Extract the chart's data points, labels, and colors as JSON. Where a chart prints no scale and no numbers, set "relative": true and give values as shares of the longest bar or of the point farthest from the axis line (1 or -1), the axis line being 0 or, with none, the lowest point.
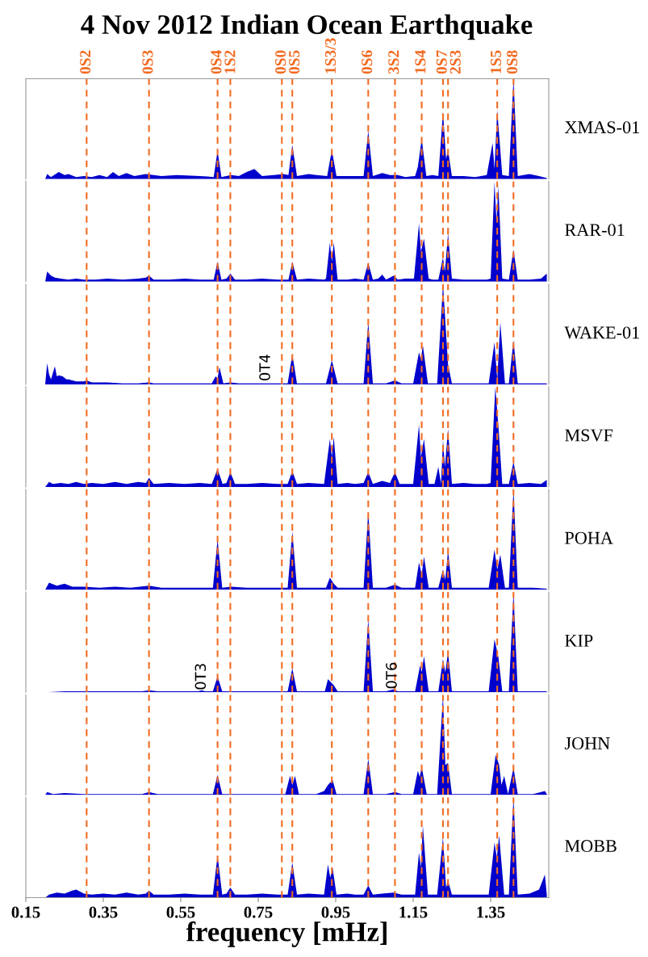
{
  "chart_data": [
    {
      "type": "area",
      "title": "4 Nov 2012 Indian Ocean Earthquake",
      "relative": true,
      "xlim": [
        0.15,
        1.5
      ],
      "tick_labels": false,
      "legend": false,
      "grid": false,
      "series": [
        {
          "name": "XMAS-01",
          "color": "#0000cc",
          "x": [
            0.2,
            0.205,
            0.215,
            0.235,
            0.25,
            0.26,
            0.28,
            0.3,
            0.32,
            0.34,
            0.36,
            0.375,
            0.39,
            0.41,
            0.43,
            0.46,
            0.5,
            0.54,
            0.6,
            0.635,
            0.645,
            0.655,
            0.68,
            0.7,
            0.72,
            0.74,
            0.76,
            0.79,
            0.815,
            0.828,
            0.838,
            0.85,
            0.88,
            0.9,
            0.928,
            0.94,
            0.952,
            0.98,
            1.0,
            1.022,
            1.034,
            1.046,
            1.07,
            1.09,
            1.11,
            1.13,
            1.155,
            1.162,
            1.172,
            1.184,
            1.2,
            1.215,
            1.227,
            1.235,
            1.24,
            1.25,
            1.28,
            1.31,
            1.34,
            1.355,
            1.36,
            1.367,
            1.38,
            1.397,
            1.409,
            1.42,
            1.45,
            1.475,
            1.495
          ],
          "values": [
            0,
            0.05,
            0.02,
            0.07,
            0.04,
            0.05,
            0.02,
            0.03,
            0.02,
            0.04,
            0.02,
            0.07,
            0.03,
            0.06,
            0.03,
            0.05,
            0.03,
            0.04,
            0.03,
            0.02,
            0.28,
            0.02,
            0.04,
            0.03,
            0.07,
            0.1,
            0.03,
            0.04,
            0.05,
            0.04,
            0.34,
            0.03,
            0.05,
            0.04,
            0.03,
            0.29,
            0.03,
            0.03,
            0.03,
            0.03,
            0.48,
            0.03,
            0.06,
            0.04,
            0.04,
            0.02,
            0.03,
            0.12,
            0.4,
            0.03,
            0.04,
            0.03,
            0.67,
            0.2,
            0.29,
            0.03,
            0.03,
            0.02,
            0.04,
            0.36,
            0.1,
            0.69,
            0.04,
            0.03,
            1.0,
            0.03,
            0.05,
            0.03,
            0.01
          ]
        }
      ],
      "ref_lines": [
        {
          "axis": "x",
          "value": 0.307,
          "label": "0S2",
          "color": "#f26b21",
          "line_style": "dashed"
        },
        {
          "axis": "x",
          "value": 0.468,
          "label": "0S3",
          "color": "#f26b21",
          "line_style": "dashed"
        },
        {
          "axis": "x",
          "value": 0.645,
          "label": "0S4",
          "color": "#f26b21",
          "line_style": "dashed"
        },
        {
          "axis": "x",
          "value": 0.678,
          "label": "1S2",
          "color": "#f26b21",
          "line_style": "dashed"
        },
        {
          "axis": "x",
          "value": 0.811,
          "label": "0S0",
          "color": "#f26b21",
          "line_style": "dashed"
        },
        {
          "axis": "x",
          "value": 0.838,
          "label": "0S5",
          "color": "#f26b21",
          "line_style": "dashed"
        },
        {
          "axis": "x",
          "value": 0.94,
          "label": "1S3/3",
          "color": "#f26b21",
          "line_style": "dashed"
        },
        {
          "axis": "x",
          "value": 1.034,
          "label": "0S6",
          "color": "#f26b21",
          "line_style": "dashed"
        },
        {
          "axis": "x",
          "value": 1.103,
          "label": "3S2",
          "color": "#f26b21",
          "line_style": "dashed"
        },
        {
          "axis": "x",
          "value": 1.172,
          "label": "1S4",
          "color": "#f26b21",
          "line_style": "dashed"
        },
        {
          "axis": "x",
          "value": 1.227,
          "label": "0S7",
          "color": "#f26b21",
          "line_style": "dashed"
        },
        {
          "axis": "x",
          "value": 1.24,
          "label": "2S3",
          "color": "#f26b21",
          "line_style": "dashed"
        },
        {
          "axis": "x",
          "value": 1.367,
          "label": "1S5",
          "color": "#f26b21",
          "line_style": "dashed"
        },
        {
          "axis": "x",
          "value": 1.409,
          "label": "0S8",
          "color": "#f26b21",
          "line_style": "dashed"
        }
      ]
    },
    {
      "type": "area",
      "relative": true,
      "xlim": [
        0.15,
        1.5
      ],
      "tick_labels": false,
      "legend": false,
      "grid": false,
      "series": [
        {
          "name": "RAR-01",
          "color": "#0000cc",
          "x": [
            0.2,
            0.205,
            0.215,
            0.225,
            0.24,
            0.26,
            0.28,
            0.3,
            0.33,
            0.36,
            0.4,
            0.44,
            0.46,
            0.468,
            0.48,
            0.52,
            0.56,
            0.6,
            0.635,
            0.645,
            0.655,
            0.668,
            0.678,
            0.69,
            0.72,
            0.76,
            0.8,
            0.828,
            0.838,
            0.85,
            0.88,
            0.92,
            0.925,
            0.935,
            0.94,
            0.945,
            0.955,
            0.98,
            1.0,
            1.022,
            1.034,
            1.046,
            1.06,
            1.07,
            1.08,
            1.1,
            1.11,
            1.13,
            1.152,
            1.165,
            1.17,
            1.178,
            1.19,
            1.2,
            1.215,
            1.227,
            1.232,
            1.24,
            1.25,
            1.28,
            1.31,
            1.34,
            1.35,
            1.36,
            1.365,
            1.37,
            1.38,
            1.397,
            1.409,
            1.42,
            1.45,
            1.48,
            1.495
          ],
          "values": [
            0,
            0.1,
            0.06,
            0.04,
            0.03,
            0.02,
            0.03,
            0.02,
            0.02,
            0.03,
            0.02,
            0.03,
            0.04,
            0.06,
            0.02,
            0.02,
            0.03,
            0.02,
            0.02,
            0.2,
            0.02,
            0.03,
            0.08,
            0.02,
            0.02,
            0.03,
            0.02,
            0.02,
            0.2,
            0.02,
            0.03,
            0.02,
            0.03,
            0.39,
            0.2,
            0.39,
            0.02,
            0.02,
            0.03,
            0.02,
            0.19,
            0.02,
            0.03,
            0.07,
            0.02,
            0.06,
            0.02,
            0.03,
            0.03,
            0.58,
            0.3,
            0.43,
            0.03,
            0.02,
            0.02,
            0.24,
            0.1,
            0.48,
            0.03,
            0.02,
            0.02,
            0.02,
            0.03,
            1.0,
            0.6,
            0.95,
            0.03,
            0.02,
            0.32,
            0.02,
            0.02,
            0.03,
            0.08
          ]
        }
      ],
      "ref_lines": [
        {
          "axis": "x",
          "value": 0.307,
          "color": "#f26b21",
          "line_style": "dashed"
        },
        {
          "axis": "x",
          "value": 0.468,
          "color": "#f26b21",
          "line_style": "dashed"
        },
        {
          "axis": "x",
          "value": 0.645,
          "color": "#f26b21",
          "line_style": "dashed"
        },
        {
          "axis": "x",
          "value": 0.678,
          "color": "#f26b21",
          "line_style": "dashed"
        },
        {
          "axis": "x",
          "value": 0.811,
          "color": "#f26b21",
          "line_style": "dashed"
        },
        {
          "axis": "x",
          "value": 0.838,
          "color": "#f26b21",
          "line_style": "dashed"
        },
        {
          "axis": "x",
          "value": 0.94,
          "color": "#f26b21",
          "line_style": "dashed"
        },
        {
          "axis": "x",
          "value": 1.034,
          "color": "#f26b21",
          "line_style": "dashed"
        },
        {
          "axis": "x",
          "value": 1.103,
          "color": "#f26b21",
          "line_style": "dashed"
        },
        {
          "axis": "x",
          "value": 1.172,
          "color": "#f26b21",
          "line_style": "dashed"
        },
        {
          "axis": "x",
          "value": 1.227,
          "color": "#f26b21",
          "line_style": "dashed"
        },
        {
          "axis": "x",
          "value": 1.24,
          "color": "#f26b21",
          "line_style": "dashed"
        },
        {
          "axis": "x",
          "value": 1.367,
          "color": "#f26b21",
          "line_style": "dashed"
        },
        {
          "axis": "x",
          "value": 1.409,
          "color": "#f26b21",
          "line_style": "dashed"
        }
      ]
    },
    {
      "type": "area",
      "relative": true,
      "xlim": [
        0.15,
        1.5
      ],
      "tick_labels": false,
      "legend": false,
      "grid": false,
      "annotations": [
        {
          "text": "0T4",
          "x": 0.77,
          "y": 0.03
        }
      ],
      "series": [
        {
          "name": "WAKE-01",
          "color": "#0000cc",
          "x": [
            0.2,
            0.205,
            0.21,
            0.215,
            0.225,
            0.23,
            0.235,
            0.245,
            0.255,
            0.26,
            0.28,
            0.3,
            0.307,
            0.32,
            0.36,
            0.4,
            0.44,
            0.468,
            0.48,
            0.52,
            0.56,
            0.6,
            0.63,
            0.64,
            0.645,
            0.65,
            0.66,
            0.678,
            0.7,
            0.75,
            0.8,
            0.826,
            0.838,
            0.85,
            0.9,
            0.925,
            0.94,
            0.955,
            1.0,
            1.022,
            1.034,
            1.046,
            1.08,
            1.103,
            1.12,
            1.15,
            1.165,
            1.17,
            1.175,
            1.188,
            1.212,
            1.227,
            1.24,
            1.25,
            1.3,
            1.345,
            1.36,
            1.367,
            1.375,
            1.387,
            1.397,
            1.409,
            1.42,
            1.46,
            1.495
          ],
          "values": [
            0,
            0.21,
            0.1,
            0.05,
            0.18,
            0.08,
            0.09,
            0.08,
            0.05,
            0.05,
            0.03,
            0.03,
            0.04,
            0.02,
            0.02,
            0.01,
            0.01,
            0.02,
            0.01,
            0.01,
            0.01,
            0.01,
            0.01,
            0.08,
            0.06,
            0.17,
            0.01,
            0.02,
            0.01,
            0.01,
            0.01,
            0.01,
            0.3,
            0.01,
            0.01,
            0.01,
            0.24,
            0.01,
            0.01,
            0.01,
            0.62,
            0.01,
            0.01,
            0.04,
            0.01,
            0.01,
            0.32,
            0.25,
            0.39,
            0.01,
            0.01,
            1.0,
            0.2,
            0.01,
            0.01,
            0.01,
            0.42,
            0.05,
            0.62,
            0.01,
            0.01,
            0.44,
            0.01,
            0.01,
            0.01
          ]
        }
      ],
      "ref_lines": [
        {
          "axis": "x",
          "value": 0.307,
          "color": "#f26b21",
          "line_style": "dashed"
        },
        {
          "axis": "x",
          "value": 0.468,
          "color": "#f26b21",
          "line_style": "dashed"
        },
        {
          "axis": "x",
          "value": 0.645,
          "color": "#f26b21",
          "line_style": "dashed"
        },
        {
          "axis": "x",
          "value": 0.678,
          "color": "#f26b21",
          "line_style": "dashed"
        },
        {
          "axis": "x",
          "value": 0.811,
          "color": "#f26b21",
          "line_style": "dashed"
        },
        {
          "axis": "x",
          "value": 0.838,
          "color": "#f26b21",
          "line_style": "dashed"
        },
        {
          "axis": "x",
          "value": 0.94,
          "color": "#f26b21",
          "line_style": "dashed"
        },
        {
          "axis": "x",
          "value": 1.034,
          "color": "#f26b21",
          "line_style": "dashed"
        },
        {
          "axis": "x",
          "value": 1.103,
          "color": "#f26b21",
          "line_style": "dashed"
        },
        {
          "axis": "x",
          "value": 1.172,
          "color": "#f26b21",
          "line_style": "dashed"
        },
        {
          "axis": "x",
          "value": 1.227,
          "color": "#f26b21",
          "line_style": "dashed"
        },
        {
          "axis": "x",
          "value": 1.24,
          "color": "#f26b21",
          "line_style": "dashed"
        },
        {
          "axis": "x",
          "value": 1.367,
          "color": "#f26b21",
          "line_style": "dashed"
        },
        {
          "axis": "x",
          "value": 1.409,
          "color": "#f26b21",
          "line_style": "dashed"
        }
      ]
    },
    {
      "type": "area",
      "relative": true,
      "xlim": [
        0.15,
        1.5
      ],
      "tick_labels": false,
      "legend": false,
      "grid": false,
      "series": [
        {
          "name": "MSVF",
          "color": "#0000cc",
          "x": [
            0.2,
            0.21,
            0.22,
            0.24,
            0.26,
            0.28,
            0.3,
            0.32,
            0.35,
            0.38,
            0.41,
            0.44,
            0.46,
            0.468,
            0.48,
            0.52,
            0.56,
            0.6,
            0.63,
            0.645,
            0.658,
            0.668,
            0.678,
            0.69,
            0.72,
            0.76,
            0.8,
            0.826,
            0.838,
            0.85,
            0.88,
            0.92,
            0.935,
            0.94,
            0.945,
            0.955,
            0.98,
            1.0,
            1.022,
            1.034,
            1.046,
            1.07,
            1.09,
            1.103,
            1.115,
            1.15,
            1.165,
            1.17,
            1.178,
            1.19,
            1.205,
            1.215,
            1.222,
            1.227,
            1.232,
            1.24,
            1.25,
            1.28,
            1.31,
            1.34,
            1.35,
            1.362,
            1.37,
            1.38,
            1.397,
            1.409,
            1.42,
            1.45,
            1.48,
            1.495
          ],
          "values": [
            0,
            0.05,
            0.03,
            0.04,
            0.03,
            0.05,
            0.03,
            0.04,
            0.03,
            0.05,
            0.03,
            0.05,
            0.04,
            0.09,
            0.03,
            0.04,
            0.03,
            0.04,
            0.03,
            0.18,
            0.03,
            0.04,
            0.15,
            0.03,
            0.03,
            0.04,
            0.03,
            0.03,
            0.16,
            0.03,
            0.04,
            0.03,
            0.48,
            0.3,
            0.5,
            0.03,
            0.04,
            0.03,
            0.04,
            0.15,
            0.03,
            0.06,
            0.04,
            0.15,
            0.03,
            0.03,
            0.62,
            0.3,
            0.48,
            0.03,
            0.03,
            0.2,
            0.03,
            0.47,
            0.2,
            0.58,
            0.03,
            0.04,
            0.03,
            0.03,
            0.04,
            1.0,
            0.61,
            0.03,
            0.03,
            0.25,
            0.03,
            0.04,
            0.03,
            0.07
          ]
        }
      ],
      "ref_lines": [
        {
          "axis": "x",
          "value": 0.307,
          "color": "#f26b21",
          "line_style": "dashed"
        },
        {
          "axis": "x",
          "value": 0.468,
          "color": "#f26b21",
          "line_style": "dashed"
        },
        {
          "axis": "x",
          "value": 0.645,
          "color": "#f26b21",
          "line_style": "dashed"
        },
        {
          "axis": "x",
          "value": 0.678,
          "color": "#f26b21",
          "line_style": "dashed"
        },
        {
          "axis": "x",
          "value": 0.811,
          "color": "#f26b21",
          "line_style": "dashed"
        },
        {
          "axis": "x",
          "value": 0.838,
          "color": "#f26b21",
          "line_style": "dashed"
        },
        {
          "axis": "x",
          "value": 0.94,
          "color": "#f26b21",
          "line_style": "dashed"
        },
        {
          "axis": "x",
          "value": 1.034,
          "color": "#f26b21",
          "line_style": "dashed"
        },
        {
          "axis": "x",
          "value": 1.103,
          "color": "#f26b21",
          "line_style": "dashed"
        },
        {
          "axis": "x",
          "value": 1.172,
          "color": "#f26b21",
          "line_style": "dashed"
        },
        {
          "axis": "x",
          "value": 1.227,
          "color": "#f26b21",
          "line_style": "dashed"
        },
        {
          "axis": "x",
          "value": 1.24,
          "color": "#f26b21",
          "line_style": "dashed"
        },
        {
          "axis": "x",
          "value": 1.367,
          "color": "#f26b21",
          "line_style": "dashed"
        },
        {
          "axis": "x",
          "value": 1.409,
          "color": "#f26b21",
          "line_style": "dashed"
        }
      ]
    },
    {
      "type": "area",
      "relative": true,
      "xlim": [
        0.15,
        1.5
      ],
      "tick_labels": false,
      "legend": false,
      "grid": false,
      "series": [
        {
          "name": "POHA",
          "color": "#0000cc",
          "x": [
            0.2,
            0.21,
            0.23,
            0.25,
            0.27,
            0.3,
            0.34,
            0.38,
            0.42,
            0.468,
            0.5,
            0.55,
            0.6,
            0.633,
            0.645,
            0.657,
            0.68,
            0.72,
            0.76,
            0.8,
            0.826,
            0.838,
            0.85,
            0.9,
            0.925,
            0.935,
            0.945,
            0.955,
            1.0,
            1.022,
            1.034,
            1.046,
            1.08,
            1.103,
            1.12,
            1.155,
            1.165,
            1.172,
            1.178,
            1.19,
            1.215,
            1.227,
            1.233,
            1.24,
            1.25,
            1.3,
            1.345,
            1.36,
            1.367,
            1.375,
            1.387,
            1.397,
            1.409,
            1.42,
            1.46,
            1.495
          ],
          "values": [
            0,
            0.07,
            0.04,
            0.06,
            0.03,
            0.03,
            0.02,
            0.03,
            0.02,
            0.04,
            0.02,
            0.02,
            0.02,
            0.02,
            0.5,
            0.02,
            0.03,
            0.02,
            0.02,
            0.02,
            0.02,
            0.58,
            0.02,
            0.02,
            0.02,
            0.12,
            0.06,
            0.02,
            0.02,
            0.02,
            0.78,
            0.02,
            0.02,
            0.05,
            0.02,
            0.02,
            0.27,
            0.15,
            0.33,
            0.02,
            0.02,
            0.2,
            0.1,
            0.39,
            0.02,
            0.02,
            0.02,
            0.4,
            0.2,
            0.35,
            0.02,
            0.02,
            1.0,
            0.02,
            0.02,
            0.01
          ]
        }
      ],
      "ref_lines": [
        {
          "axis": "x",
          "value": 0.307,
          "color": "#f26b21",
          "line_style": "dashed"
        },
        {
          "axis": "x",
          "value": 0.468,
          "color": "#f26b21",
          "line_style": "dashed"
        },
        {
          "axis": "x",
          "value": 0.645,
          "color": "#f26b21",
          "line_style": "dashed"
        },
        {
          "axis": "x",
          "value": 0.678,
          "color": "#f26b21",
          "line_style": "dashed"
        },
        {
          "axis": "x",
          "value": 0.811,
          "color": "#f26b21",
          "line_style": "dashed"
        },
        {
          "axis": "x",
          "value": 0.838,
          "color": "#f26b21",
          "line_style": "dashed"
        },
        {
          "axis": "x",
          "value": 0.94,
          "color": "#f26b21",
          "line_style": "dashed"
        },
        {
          "axis": "x",
          "value": 1.034,
          "color": "#f26b21",
          "line_style": "dashed"
        },
        {
          "axis": "x",
          "value": 1.103,
          "color": "#f26b21",
          "line_style": "dashed"
        },
        {
          "axis": "x",
          "value": 1.172,
          "color": "#f26b21",
          "line_style": "dashed"
        },
        {
          "axis": "x",
          "value": 1.227,
          "color": "#f26b21",
          "line_style": "dashed"
        },
        {
          "axis": "x",
          "value": 1.24,
          "color": "#f26b21",
          "line_style": "dashed"
        },
        {
          "axis": "x",
          "value": 1.367,
          "color": "#f26b21",
          "line_style": "dashed"
        },
        {
          "axis": "x",
          "value": 1.409,
          "color": "#f26b21",
          "line_style": "dashed"
        }
      ]
    },
    {
      "type": "area",
      "relative": true,
      "xlim": [
        0.15,
        1.5
      ],
      "tick_labels": false,
      "legend": false,
      "grid": false,
      "annotations": [
        {
          "text": "0T3",
          "x": 0.604,
          "y": 0.02
        },
        {
          "text": "0T6",
          "x": 1.097,
          "y": 0.03
        }
      ],
      "series": [
        {
          "name": "KIP",
          "color": "#0000cc",
          "x": [
            0.2,
            0.25,
            0.3,
            0.35,
            0.4,
            0.45,
            0.468,
            0.49,
            0.55,
            0.595,
            0.604,
            0.613,
            0.633,
            0.645,
            0.657,
            0.7,
            0.75,
            0.8,
            0.826,
            0.838,
            0.85,
            0.9,
            0.922,
            0.93,
            0.945,
            0.955,
            1.0,
            1.022,
            1.034,
            1.046,
            1.08,
            1.1,
            1.11,
            1.155,
            1.168,
            1.172,
            1.178,
            1.19,
            1.215,
            1.227,
            1.233,
            1.24,
            1.25,
            1.3,
            1.345,
            1.36,
            1.37,
            1.38,
            1.397,
            1.409,
            1.42,
            1.46,
            1.495
          ],
          "values": [
            0,
            0.01,
            0.01,
            0.01,
            0.01,
            0.01,
            0.02,
            0.01,
            0.01,
            0.01,
            0.02,
            0.01,
            0.01,
            0.16,
            0.01,
            0.01,
            0.01,
            0.01,
            0.01,
            0.24,
            0.01,
            0.01,
            0.01,
            0.13,
            0.07,
            0.01,
            0.01,
            0.01,
            0.73,
            0.01,
            0.01,
            0.03,
            0.01,
            0.01,
            0.27,
            0.2,
            0.36,
            0.01,
            0.01,
            0.33,
            0.2,
            0.4,
            0.01,
            0.01,
            0.01,
            0.53,
            0.35,
            0.01,
            0.01,
            1.0,
            0.01,
            0.01,
            0.01
          ]
        }
      ],
      "ref_lines": [
        {
          "axis": "x",
          "value": 0.307,
          "color": "#f26b21",
          "line_style": "dashed"
        },
        {
          "axis": "x",
          "value": 0.468,
          "color": "#f26b21",
          "line_style": "dashed"
        },
        {
          "axis": "x",
          "value": 0.645,
          "color": "#f26b21",
          "line_style": "dashed"
        },
        {
          "axis": "x",
          "value": 0.678,
          "color": "#f26b21",
          "line_style": "dashed"
        },
        {
          "axis": "x",
          "value": 0.811,
          "color": "#f26b21",
          "line_style": "dashed"
        },
        {
          "axis": "x",
          "value": 0.838,
          "color": "#f26b21",
          "line_style": "dashed"
        },
        {
          "axis": "x",
          "value": 0.94,
          "color": "#f26b21",
          "line_style": "dashed"
        },
        {
          "axis": "x",
          "value": 1.034,
          "color": "#f26b21",
          "line_style": "dashed"
        },
        {
          "axis": "x",
          "value": 1.103,
          "color": "#f26b21",
          "line_style": "dashed"
        },
        {
          "axis": "x",
          "value": 1.172,
          "color": "#f26b21",
          "line_style": "dashed"
        },
        {
          "axis": "x",
          "value": 1.227,
          "color": "#f26b21",
          "line_style": "dashed"
        },
        {
          "axis": "x",
          "value": 1.24,
          "color": "#f26b21",
          "line_style": "dashed"
        },
        {
          "axis": "x",
          "value": 1.367,
          "color": "#f26b21",
          "line_style": "dashed"
        },
        {
          "axis": "x",
          "value": 1.409,
          "color": "#f26b21",
          "line_style": "dashed"
        }
      ]
    },
    {
      "type": "area",
      "relative": true,
      "xlim": [
        0.15,
        1.5
      ],
      "tick_labels": false,
      "legend": false,
      "grid": false,
      "series": [
        {
          "name": "JOHN",
          "color": "#0000cc",
          "x": [
            0.2,
            0.205,
            0.22,
            0.25,
            0.3,
            0.35,
            0.4,
            0.45,
            0.468,
            0.49,
            0.55,
            0.6,
            0.633,
            0.645,
            0.657,
            0.7,
            0.75,
            0.8,
            0.82,
            0.832,
            0.838,
            0.845,
            0.855,
            0.9,
            0.92,
            0.93,
            0.942,
            0.952,
            1.0,
            1.022,
            1.034,
            1.046,
            1.08,
            1.103,
            1.12,
            1.15,
            1.162,
            1.167,
            1.172,
            1.185,
            1.212,
            1.227,
            1.233,
            1.24,
            1.25,
            1.3,
            1.35,
            1.363,
            1.372,
            1.378,
            1.385,
            1.395,
            1.409,
            1.42,
            1.46,
            1.49,
            1.495
          ],
          "values": [
            0,
            0.03,
            0.01,
            0.02,
            0.01,
            0.01,
            0.01,
            0.01,
            0.03,
            0.01,
            0.01,
            0.01,
            0.01,
            0.2,
            0.01,
            0.01,
            0.01,
            0.01,
            0.01,
            0.19,
            0.1,
            0.19,
            0.01,
            0.01,
            0.04,
            0.1,
            0.15,
            0.01,
            0.01,
            0.01,
            0.36,
            0.01,
            0.01,
            0.03,
            0.01,
            0.01,
            0.24,
            0.18,
            0.28,
            0.01,
            0.01,
            1.0,
            0.3,
            0.32,
            0.01,
            0.01,
            0.01,
            0.4,
            0.3,
            0.1,
            0.19,
            0.01,
            0.27,
            0.01,
            0.01,
            0.04,
            0.01
          ]
        }
      ],
      "ref_lines": [
        {
          "axis": "x",
          "value": 0.307,
          "color": "#f26b21",
          "line_style": "dashed"
        },
        {
          "axis": "x",
          "value": 0.468,
          "color": "#f26b21",
          "line_style": "dashed"
        },
        {
          "axis": "x",
          "value": 0.645,
          "color": "#f26b21",
          "line_style": "dashed"
        },
        {
          "axis": "x",
          "value": 0.678,
          "color": "#f26b21",
          "line_style": "dashed"
        },
        {
          "axis": "x",
          "value": 0.811,
          "color": "#f26b21",
          "line_style": "dashed"
        },
        {
          "axis": "x",
          "value": 0.838,
          "color": "#f26b21",
          "line_style": "dashed"
        },
        {
          "axis": "x",
          "value": 0.94,
          "color": "#f26b21",
          "line_style": "dashed"
        },
        {
          "axis": "x",
          "value": 1.034,
          "color": "#f26b21",
          "line_style": "dashed"
        },
        {
          "axis": "x",
          "value": 1.103,
          "color": "#f26b21",
          "line_style": "dashed"
        },
        {
          "axis": "x",
          "value": 1.172,
          "color": "#f26b21",
          "line_style": "dashed"
        },
        {
          "axis": "x",
          "value": 1.227,
          "color": "#f26b21",
          "line_style": "dashed"
        },
        {
          "axis": "x",
          "value": 1.24,
          "color": "#f26b21",
          "line_style": "dashed"
        },
        {
          "axis": "x",
          "value": 1.367,
          "color": "#f26b21",
          "line_style": "dashed"
        },
        {
          "axis": "x",
          "value": 1.409,
          "color": "#f26b21",
          "line_style": "dashed"
        }
      ]
    },
    {
      "type": "area",
      "relative": true,
      "xlabel": "frequency [mHz]",
      "xlim": [
        0.15,
        1.5
      ],
      "xticks": [
        0.15,
        0.35,
        0.55,
        0.75,
        0.95,
        1.15,
        1.35
      ],
      "tick_labels": "x",
      "legend": false,
      "grid": false,
      "series": [
        {
          "name": "MOBB",
          "color": "#0000cc",
          "x": [
            0.2,
            0.21,
            0.23,
            0.25,
            0.27,
            0.28,
            0.3,
            0.32,
            0.35,
            0.38,
            0.41,
            0.44,
            0.46,
            0.468,
            0.48,
            0.52,
            0.56,
            0.6,
            0.633,
            0.645,
            0.657,
            0.668,
            0.678,
            0.69,
            0.72,
            0.76,
            0.8,
            0.826,
            0.838,
            0.85,
            0.88,
            0.92,
            0.93,
            0.936,
            0.942,
            0.952,
            0.98,
            1.0,
            1.022,
            1.034,
            1.046,
            1.07,
            1.1,
            1.12,
            1.155,
            1.165,
            1.17,
            1.175,
            1.188,
            1.212,
            1.227,
            1.235,
            1.24,
            1.25,
            1.3,
            1.345,
            1.36,
            1.366,
            1.372,
            1.385,
            1.397,
            1.409,
            1.42,
            1.45,
            1.475,
            1.49,
            1.495
          ],
          "values": [
            0,
            0.03,
            0.05,
            0.04,
            0.07,
            0.08,
            0.04,
            0.03,
            0.04,
            0.03,
            0.05,
            0.03,
            0.04,
            0.07,
            0.03,
            0.03,
            0.04,
            0.03,
            0.03,
            0.42,
            0.03,
            0.04,
            0.1,
            0.03,
            0.03,
            0.04,
            0.03,
            0.03,
            0.35,
            0.03,
            0.04,
            0.03,
            0.33,
            0.2,
            0.3,
            0.03,
            0.04,
            0.03,
            0.03,
            0.12,
            0.03,
            0.04,
            0.05,
            0.03,
            0.03,
            0.45,
            0.3,
            0.72,
            0.03,
            0.03,
            0.6,
            0.1,
            0.17,
            0.03,
            0.03,
            0.03,
            0.55,
            0.4,
            0.62,
            0.03,
            0.03,
            1.0,
            0.03,
            0.04,
            0.08,
            0.23,
            0.03
          ]
        }
      ],
      "ref_lines": [
        {
          "axis": "x",
          "value": 0.307,
          "color": "#f26b21",
          "line_style": "dashed"
        },
        {
          "axis": "x",
          "value": 0.468,
          "color": "#f26b21",
          "line_style": "dashed"
        },
        {
          "axis": "x",
          "value": 0.645,
          "color": "#f26b21",
          "line_style": "dashed"
        },
        {
          "axis": "x",
          "value": 0.678,
          "color": "#f26b21",
          "line_style": "dashed"
        },
        {
          "axis": "x",
          "value": 0.811,
          "color": "#f26b21",
          "line_style": "dashed"
        },
        {
          "axis": "x",
          "value": 0.838,
          "color": "#f26b21",
          "line_style": "dashed"
        },
        {
          "axis": "x",
          "value": 0.94,
          "color": "#f26b21",
          "line_style": "dashed"
        },
        {
          "axis": "x",
          "value": 1.034,
          "color": "#f26b21",
          "line_style": "dashed"
        },
        {
          "axis": "x",
          "value": 1.103,
          "color": "#f26b21",
          "line_style": "dashed"
        },
        {
          "axis": "x",
          "value": 1.172,
          "color": "#f26b21",
          "line_style": "dashed"
        },
        {
          "axis": "x",
          "value": 1.227,
          "color": "#f26b21",
          "line_style": "dashed"
        },
        {
          "axis": "x",
          "value": 1.24,
          "color": "#f26b21",
          "line_style": "dashed"
        },
        {
          "axis": "x",
          "value": 1.367,
          "color": "#f26b21",
          "line_style": "dashed"
        },
        {
          "axis": "x",
          "value": 1.409,
          "color": "#f26b21",
          "line_style": "dashed"
        }
      ]
    }
  ]
}
